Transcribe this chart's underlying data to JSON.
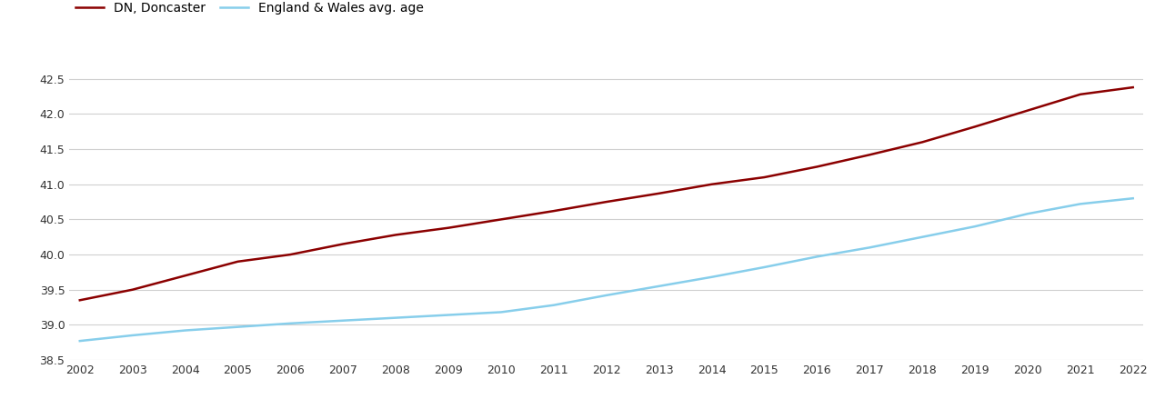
{
  "years": [
    2002,
    2003,
    2004,
    2005,
    2006,
    2007,
    2008,
    2009,
    2010,
    2011,
    2012,
    2013,
    2014,
    2015,
    2016,
    2017,
    2018,
    2019,
    2020,
    2021,
    2022
  ],
  "doncaster": [
    39.35,
    39.5,
    39.7,
    39.9,
    40.0,
    40.15,
    40.28,
    40.38,
    40.5,
    40.62,
    40.75,
    40.87,
    41.0,
    41.1,
    41.25,
    41.42,
    41.6,
    41.82,
    42.05,
    42.28,
    42.38
  ],
  "england_wales": [
    38.77,
    38.85,
    38.92,
    38.97,
    39.02,
    39.06,
    39.1,
    39.14,
    39.18,
    39.28,
    39.42,
    39.55,
    39.68,
    39.82,
    39.97,
    40.1,
    40.25,
    40.4,
    40.58,
    40.72,
    40.8
  ],
  "doncaster_color": "#8B0000",
  "england_wales_color": "#87CEEB",
  "legend_doncaster": "DN, Doncaster",
  "legend_england_wales": "England & Wales avg. age",
  "ylim_min": 38.5,
  "ylim_max": 42.75,
  "yticks": [
    38.5,
    39.0,
    39.5,
    40.0,
    40.5,
    41.0,
    41.5,
    42.0,
    42.5
  ],
  "background_color": "#ffffff",
  "grid_color": "#d0d0d0",
  "line_width": 1.8
}
